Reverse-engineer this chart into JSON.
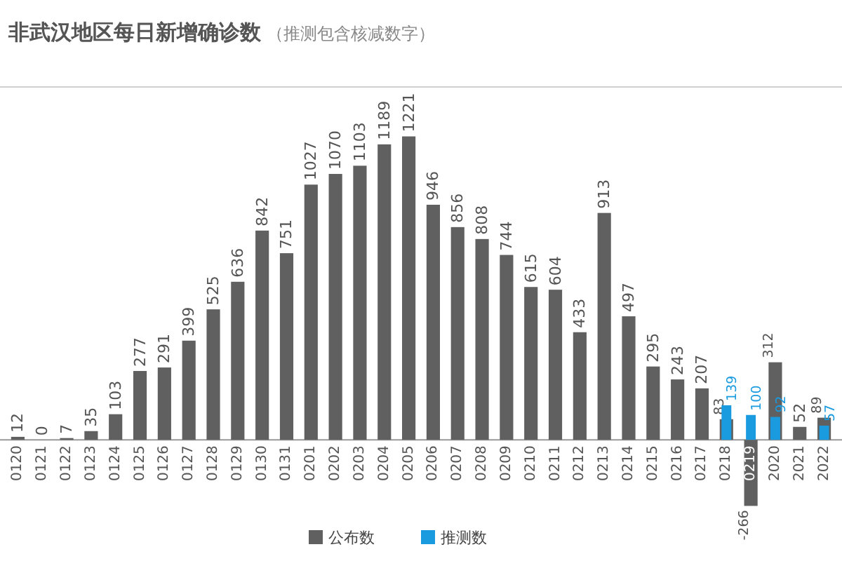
{
  "chart_data": {
    "type": "bar",
    "title": "非武汉地区每日新增确诊数",
    "subtitle": "（推测包含核减数字）",
    "categories": [
      "0120",
      "0121",
      "0122",
      "0123",
      "0124",
      "0125",
      "0126",
      "0127",
      "0128",
      "0129",
      "0130",
      "0131",
      "0201",
      "0202",
      "0203",
      "0204",
      "0205",
      "0206",
      "0207",
      "0208",
      "0209",
      "0210",
      "0211",
      "0212",
      "0213",
      "0214",
      "0215",
      "0216",
      "0217",
      "0218",
      "0219",
      "2020",
      "2021",
      "2022"
    ],
    "series": [
      {
        "name": "公布数",
        "color": "#606060",
        "values": [
          12,
          0,
          7,
          35,
          103,
          277,
          291,
          399,
          525,
          636,
          842,
          751,
          1027,
          1070,
          1103,
          1189,
          1221,
          946,
          856,
          808,
          744,
          615,
          604,
          433,
          913,
          497,
          295,
          243,
          207,
          83,
          -266,
          312,
          52,
          89
        ]
      },
      {
        "name": "推测数",
        "color": "#1a9be0",
        "values": [
          null,
          null,
          null,
          null,
          null,
          null,
          null,
          null,
          null,
          null,
          null,
          null,
          null,
          null,
          null,
          null,
          null,
          null,
          null,
          null,
          null,
          null,
          null,
          null,
          null,
          null,
          null,
          null,
          null,
          139,
          100,
          92,
          null,
          57
        ]
      }
    ],
    "ylim": [
      -420,
      1420
    ],
    "tick_labels": "x",
    "data_labels": true,
    "legend": "bottom"
  }
}
